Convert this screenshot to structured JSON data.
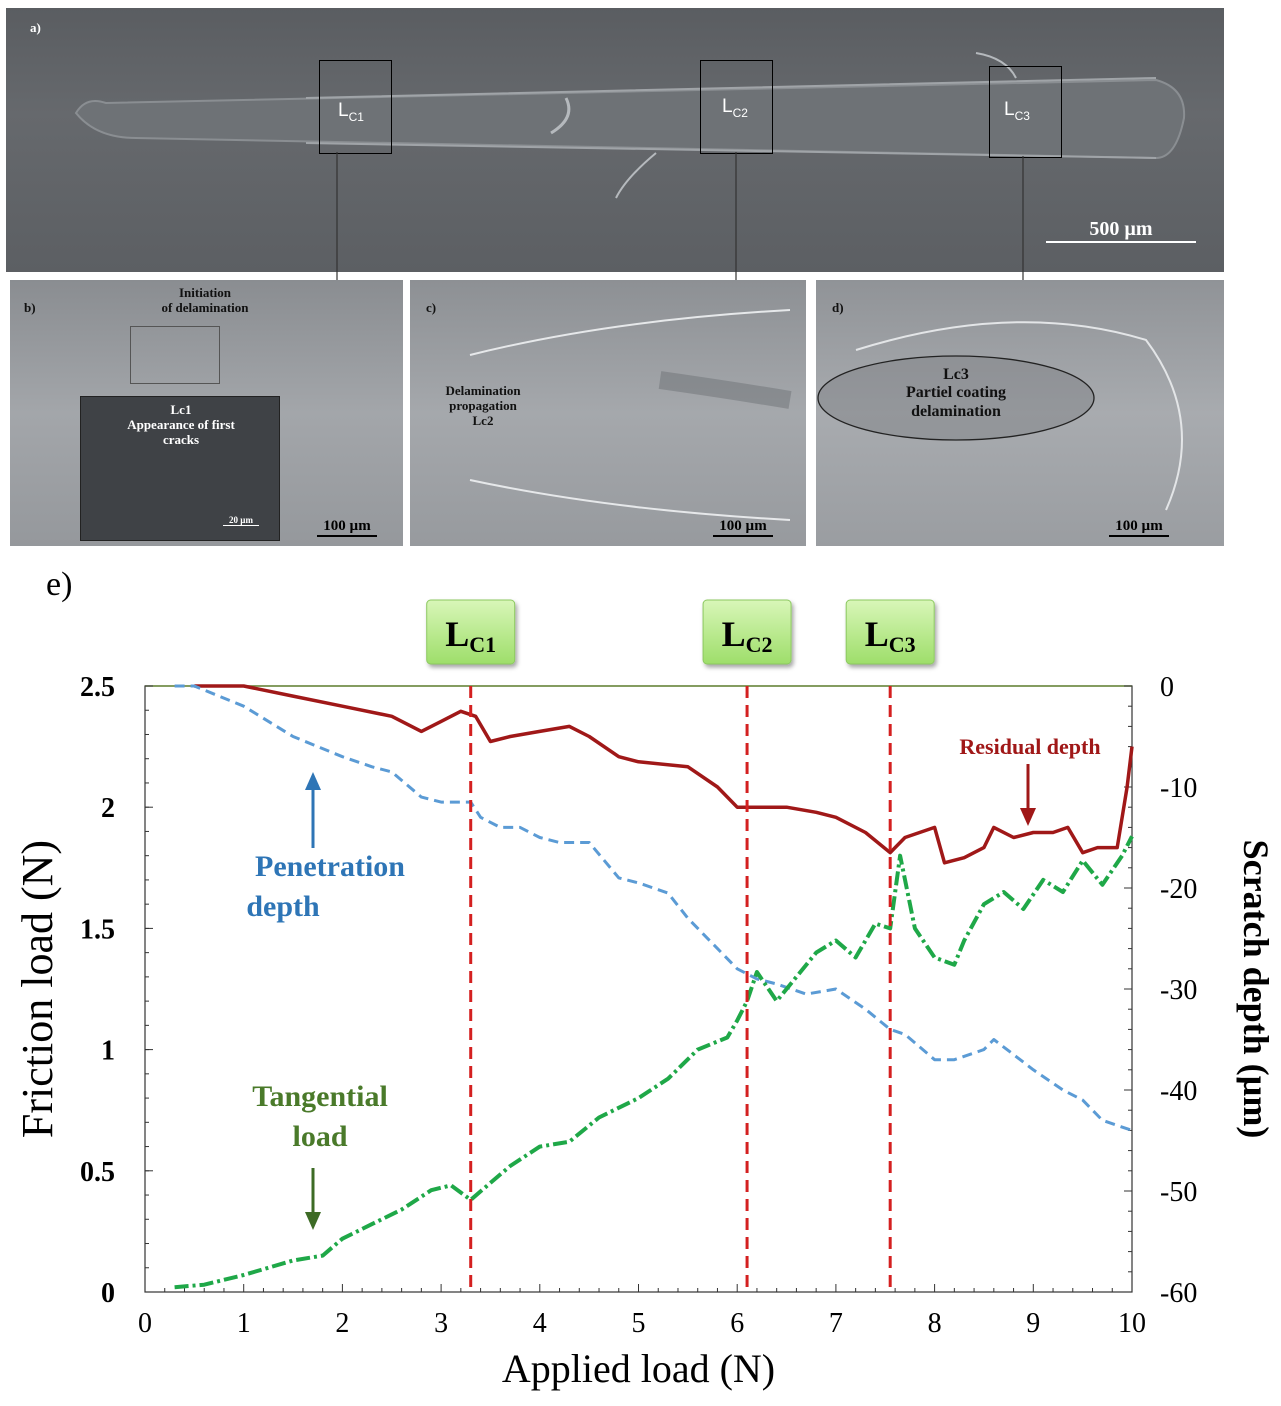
{
  "panel_a": {
    "letter": "a)",
    "boxes": [
      "C1",
      "C2",
      "C3"
    ],
    "box_prefix": "L",
    "scale": "500  µm"
  },
  "panel_b": {
    "letter": "b)",
    "label": "Initiation\nof delamination",
    "inset_label": "Lc1\nAppearance of first\ncracks",
    "inset_scale": "20 µm",
    "scale": "100  µm"
  },
  "panel_c": {
    "letter": "c)",
    "label": "Delamination\npropagation\nLc2",
    "scale": "100  µm"
  },
  "panel_d": {
    "letter": "d)",
    "label": "Lc3\nPartiel coating\ndelamination",
    "scale": "100  µm"
  },
  "panel_e": {
    "letter": "e)"
  },
  "colors": {
    "residual": "#a01818",
    "penetration": "#5b9bd5",
    "tangential": "#1fa848",
    "critical": "#d42020",
    "badge": "#b8ec8c",
    "sem_dark": "#5e6064"
  },
  "chart_data": {
    "type": "line",
    "xlabel": "Applied load (N)",
    "ylabel": "Friction load (N)",
    "y2label": "Scratch depth (µm)",
    "xlim": [
      0,
      10
    ],
    "ylim": [
      0,
      2.5
    ],
    "y2lim": [
      -60,
      0
    ],
    "x_ticks": [
      "0",
      "1",
      "2",
      "3",
      "4",
      "5",
      "6",
      "7",
      "8",
      "9",
      "10"
    ],
    "y_ticks": [
      "0",
      "0.5",
      "1",
      "1.5",
      "2",
      "2.5"
    ],
    "y2_ticks": [
      "-60",
      "-50",
      "-40",
      "-30",
      "-20",
      "-10",
      "0"
    ],
    "critical_loads": [
      {
        "name": "C1",
        "x": 3.3
      },
      {
        "name": "C2",
        "x": 6.1
      },
      {
        "name": "C3",
        "x": 7.55
      }
    ],
    "series": [
      {
        "name": "Residual depth",
        "axis": "right",
        "style": "solid",
        "x": [
          0.5,
          1.0,
          1.5,
          2.0,
          2.5,
          2.8,
          3.0,
          3.2,
          3.35,
          3.5,
          3.7,
          4.0,
          4.3,
          4.5,
          4.8,
          5.0,
          5.5,
          5.8,
          6.0,
          6.1,
          6.3,
          6.5,
          6.8,
          7.0,
          7.3,
          7.55,
          7.7,
          8.0,
          8.1,
          8.3,
          8.5,
          8.6,
          8.8,
          9.0,
          9.2,
          9.35,
          9.5,
          9.65,
          9.85,
          9.95,
          10.0
        ],
        "y": [
          0,
          0,
          -1,
          -2,
          -3,
          -4.5,
          -3.5,
          -2.5,
          -3,
          -5.5,
          -5,
          -4.5,
          -4,
          -5,
          -7,
          -7.5,
          -8,
          -10,
          -12,
          -12,
          -12,
          -12,
          -12.5,
          -13,
          -14.5,
          -16.5,
          -15,
          -14,
          -17.5,
          -17,
          -16,
          -14,
          -15,
          -14.5,
          -14.5,
          -14,
          -16.5,
          -16,
          -16,
          -10,
          -6
        ]
      },
      {
        "name": "Penetration depth",
        "axis": "right",
        "style": "dashed",
        "x": [
          0.3,
          0.5,
          1.0,
          1.5,
          2.0,
          2.3,
          2.5,
          2.8,
          3.0,
          3.3,
          3.4,
          3.6,
          3.8,
          4.0,
          4.2,
          4.5,
          4.8,
          5.0,
          5.3,
          5.5,
          5.8,
          6.0,
          6.2,
          6.4,
          6.7,
          7.0,
          7.3,
          7.55,
          7.7,
          8.0,
          8.2,
          8.5,
          8.6,
          8.8,
          9.0,
          9.3,
          9.5,
          9.7,
          9.85,
          10.0
        ],
        "y": [
          0,
          0,
          -2,
          -5,
          -7,
          -8,
          -8.5,
          -11,
          -11.5,
          -11.5,
          -13,
          -14,
          -14,
          -15,
          -15.5,
          -15.5,
          -19,
          -19.5,
          -20.5,
          -23,
          -26,
          -28,
          -29,
          -29.5,
          -30.5,
          -30,
          -32,
          -34,
          -34.5,
          -37,
          -37,
          -36,
          -35,
          -36.5,
          -38,
          -40,
          -41,
          -43,
          -43.5,
          -44
        ]
      },
      {
        "name": "Tangential load",
        "axis": "left",
        "style": "dashdot",
        "x": [
          0.3,
          0.6,
          1.0,
          1.5,
          1.8,
          2.0,
          2.3,
          2.6,
          2.9,
          3.1,
          3.3,
          3.5,
          3.7,
          4.0,
          4.3,
          4.6,
          5.0,
          5.3,
          5.6,
          5.9,
          6.0,
          6.1,
          6.2,
          6.4,
          6.6,
          6.8,
          7.0,
          7.2,
          7.4,
          7.55,
          7.65,
          7.8,
          8.0,
          8.2,
          8.3,
          8.5,
          8.7,
          8.9,
          9.1,
          9.3,
          9.5,
          9.7,
          9.9,
          10.0
        ],
        "y": [
          0.02,
          0.03,
          0.07,
          0.13,
          0.15,
          0.22,
          0.28,
          0.34,
          0.42,
          0.44,
          0.38,
          0.45,
          0.52,
          0.6,
          0.62,
          0.72,
          0.8,
          0.88,
          1.0,
          1.05,
          1.12,
          1.2,
          1.32,
          1.2,
          1.3,
          1.4,
          1.45,
          1.38,
          1.52,
          1.5,
          1.8,
          1.5,
          1.38,
          1.35,
          1.45,
          1.6,
          1.65,
          1.58,
          1.7,
          1.65,
          1.78,
          1.68,
          1.8,
          1.88
        ]
      }
    ],
    "annotations": [
      {
        "text": "Residual depth"
      },
      {
        "text": "Penetration\ndepth"
      },
      {
        "text": "Tangential\nload"
      }
    ]
  }
}
